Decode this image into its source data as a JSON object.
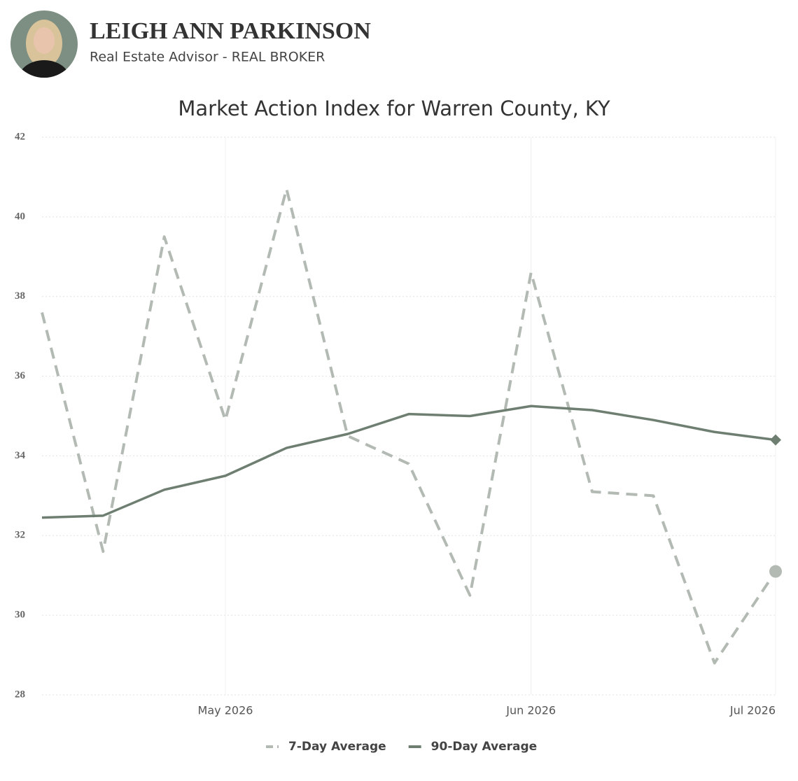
{
  "header": {
    "name": "LEIGH ANN PARKINSON",
    "subtitle": "Real Estate Advisor - REAL BROKER"
  },
  "chart_data": {
    "type": "line",
    "title": "Market Action Index for Warren County, KY",
    "categories": [
      null,
      null,
      null,
      "May 2026",
      null,
      null,
      null,
      null,
      "Jun 2026",
      null,
      null,
      null,
      "Jul 2026"
    ],
    "series": [
      {
        "name": "7-Day Average",
        "color": "#b3bab3",
        "dashed": true,
        "end_marker": "circle",
        "values": [
          37.6,
          31.6,
          39.5,
          34.9,
          40.7,
          34.5,
          33.8,
          30.5,
          38.6,
          33.1,
          33.0,
          28.8,
          31.1
        ]
      },
      {
        "name": "90-Day Average",
        "color": "#6e7f72",
        "dashed": false,
        "end_marker": "diamond",
        "values": [
          32.45,
          32.5,
          33.15,
          33.5,
          34.2,
          34.55,
          35.05,
          35.0,
          35.25,
          35.15,
          34.9,
          34.6,
          34.4
        ]
      }
    ],
    "ylim": [
      28,
      42
    ],
    "yticks": [
      28,
      30,
      32,
      34,
      36,
      38,
      40,
      42
    ],
    "grid": true,
    "legend": "bottom"
  }
}
